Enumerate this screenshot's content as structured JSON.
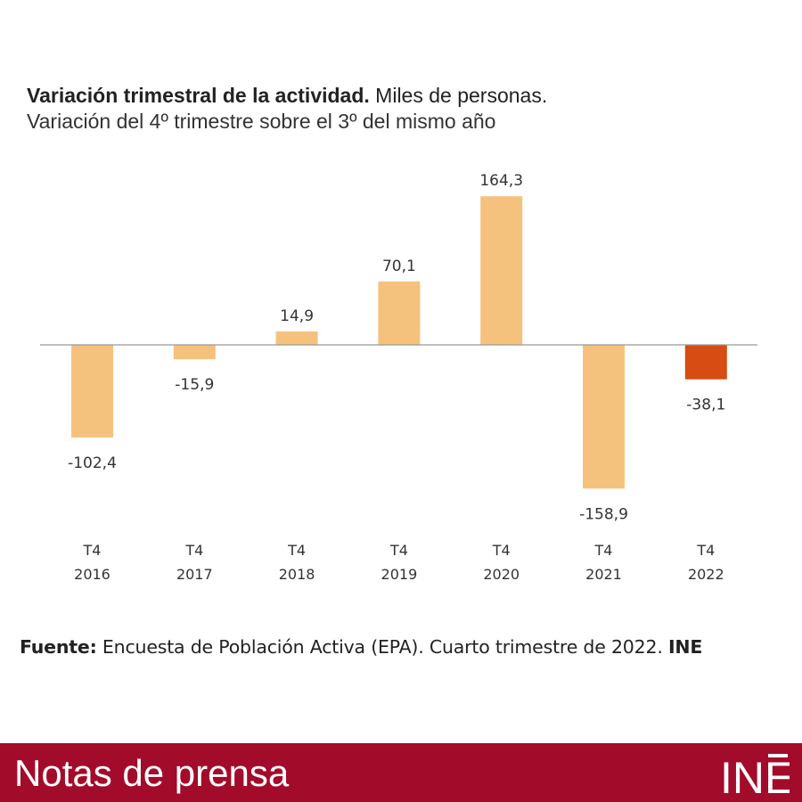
{
  "header": {
    "title_bold": "Variación trimestral de la actividad.",
    "title_rest": "Miles de personas.",
    "subtitle": "Variación del 4º trimestre sobre el 3º del mismo año"
  },
  "chart_data": {
    "type": "bar",
    "categories": [
      "T4 2016",
      "T4 2017",
      "T4 2018",
      "T4 2019",
      "T4 2020",
      "T4 2021",
      "T4 2022"
    ],
    "category_lines": [
      [
        "T4",
        "2016"
      ],
      [
        "T4",
        "2017"
      ],
      [
        "T4",
        "2018"
      ],
      [
        "T4",
        "2019"
      ],
      [
        "T4",
        "2020"
      ],
      [
        "T4",
        "2021"
      ],
      [
        "T4",
        "2022"
      ]
    ],
    "values": [
      -102.4,
      -15.9,
      14.9,
      70.1,
      164.3,
      -158.9,
      -38.1
    ],
    "value_labels": [
      "-102,4",
      "-15,9",
      "14,9",
      "70,1",
      "164,3",
      "-158,9",
      "-38,1"
    ],
    "colors": [
      "#f5c27d",
      "#f5c27d",
      "#f5c27d",
      "#f5c27d",
      "#f5c27d",
      "#f5c27d",
      "#d64c12"
    ],
    "ylim": [
      -170,
      170
    ],
    "grid": false,
    "zero_line_color": "#999999"
  },
  "source": {
    "label": "Fuente:",
    "text": "Encuesta de Población Activa (EPA). Cuarto trimestre de  2022.",
    "org": "INE"
  },
  "footer": {
    "title": "Notas de prensa",
    "logo_text": "INE",
    "background": "#a30b2b"
  }
}
